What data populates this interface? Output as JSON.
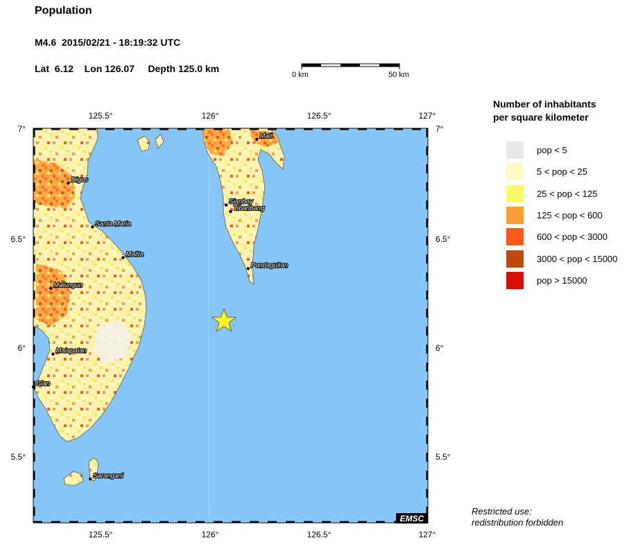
{
  "header": {
    "title": "Population",
    "event": "M4.6  2015/02/21 - 18:19:32 UTC",
    "location": "Lat  6.12    Lon 126.07     Depth 125.0 km"
  },
  "scale_bar": {
    "left_label": "0 km",
    "right_label": "50 km"
  },
  "axes": {
    "top_ticks": [
      "125.5°",
      "126°",
      "126.5°",
      "127°"
    ],
    "bottom_ticks": [
      "125.5°",
      "126°",
      "126.5°",
      "127°"
    ],
    "left_ticks": [
      "7°",
      "6.5°",
      "6°",
      "5.5°"
    ],
    "right_ticks": [
      "7°",
      "6.5°",
      "6°",
      "5.5°"
    ]
  },
  "map": {
    "ocean_color": "#87C6F8",
    "epicenter": {
      "lat": 6.12,
      "lon": 126.07,
      "color": "#FFF31E",
      "icon": "star-icon"
    },
    "cities": [
      {
        "name": "Digos",
        "lat": 6.75,
        "lon": 125.36
      },
      {
        "name": "Santa Maria",
        "lat": 6.55,
        "lon": 125.47
      },
      {
        "name": "Malita",
        "lat": 6.41,
        "lon": 125.61
      },
      {
        "name": "Malungun",
        "lat": 6.27,
        "lon": 125.28
      },
      {
        "name": "Malapatan",
        "lat": 5.97,
        "lon": 125.29
      },
      {
        "name": "Glan",
        "lat": 5.82,
        "lon": 125.2
      },
      {
        "name": "Mati",
        "lat": 6.95,
        "lon": 126.22
      },
      {
        "name": "Sianboy",
        "lat": 6.65,
        "lon": 126.08
      },
      {
        "name": "Tibanbang",
        "lat": 6.62,
        "lon": 126.1
      },
      {
        "name": "Pondaguitan",
        "lat": 6.36,
        "lon": 126.18
      },
      {
        "name": "Sarangani",
        "lat": 5.4,
        "lon": 125.46
      }
    ],
    "credit": "EMSC"
  },
  "legend": {
    "title_line1": "Number of inhabitants",
    "title_line2": "per square kilometer",
    "items": [
      {
        "label": "pop < 5",
        "color": "#E8E8E8"
      },
      {
        "label": "5 < pop < 25",
        "color": "#FDF8C6"
      },
      {
        "label": "25 < pop < 125",
        "color": "#FCF766"
      },
      {
        "label": "125 < pop < 600",
        "color": "#FD9C35"
      },
      {
        "label": "600 < pop < 3000",
        "color": "#FD5719"
      },
      {
        "label": "3000 < pop < 15000",
        "color": "#BF4A10"
      },
      {
        "label": "pop > 15000",
        "color": "#DB0F08"
      }
    ]
  },
  "footer": {
    "line1": "Restricted use:",
    "line2": "redistribution forbidden"
  }
}
